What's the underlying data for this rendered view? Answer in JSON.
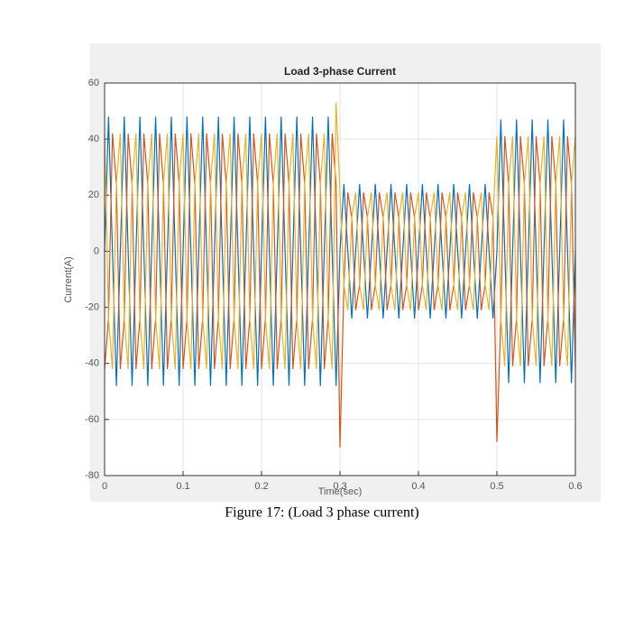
{
  "chart_data": {
    "type": "line",
    "title": "Load 3-phase Current",
    "xlabel": "Time(sec)",
    "ylabel": "Current(A)",
    "xlim": [
      0,
      0.6
    ],
    "xticks": [
      0,
      0.1,
      0.2,
      0.3,
      0.4,
      0.5,
      0.6
    ],
    "ylim": [
      -80,
      60
    ],
    "yticks": [
      -80,
      -60,
      -40,
      -20,
      0,
      20,
      40,
      60
    ],
    "grid": true,
    "x": [
      0,
      0.005,
      0.01,
      0.015,
      0.02,
      0.025,
      0.03,
      0.035,
      0.04,
      0.045,
      0.05,
      0.055,
      0.06,
      0.065,
      0.07,
      0.075,
      0.08,
      0.085,
      0.09,
      0.095,
      0.1,
      0.105,
      0.11,
      0.115,
      0.12,
      0.125,
      0.13,
      0.135,
      0.14,
      0.145,
      0.15,
      0.155,
      0.16,
      0.165,
      0.17,
      0.175,
      0.18,
      0.185,
      0.19,
      0.195,
      0.2,
      0.205,
      0.21,
      0.215,
      0.22,
      0.225,
      0.23,
      0.235,
      0.24,
      0.245,
      0.25,
      0.255,
      0.26,
      0.265,
      0.27,
      0.275,
      0.28,
      0.285,
      0.29,
      0.295,
      0.3,
      0.305,
      0.31,
      0.315,
      0.32,
      0.325,
      0.33,
      0.335,
      0.34,
      0.345,
      0.35,
      0.355,
      0.36,
      0.365,
      0.37,
      0.375,
      0.38,
      0.385,
      0.39,
      0.395,
      0.4,
      0.405,
      0.41,
      0.415,
      0.42,
      0.425,
      0.43,
      0.435,
      0.44,
      0.445,
      0.45,
      0.455,
      0.46,
      0.465,
      0.47,
      0.475,
      0.48,
      0.485,
      0.49,
      0.495,
      0.5,
      0.505,
      0.51,
      0.515,
      0.52,
      0.525,
      0.53,
      0.535,
      0.54,
      0.545,
      0.55,
      0.555,
      0.56,
      0.565,
      0.57,
      0.575,
      0.58,
      0.585,
      0.59,
      0.595,
      0.6
    ],
    "series": [
      {
        "color": "#0072BD",
        "values": [
          0,
          48,
          0,
          -48,
          0,
          48,
          0,
          -48,
          0,
          48,
          0,
          -48,
          0,
          48,
          0,
          -48,
          0,
          48,
          0,
          -48,
          0,
          48,
          0,
          -48,
          0,
          48,
          0,
          -48,
          0,
          48,
          0,
          -48,
          0,
          48,
          0,
          -48,
          0,
          48,
          0,
          -48,
          0,
          48,
          0,
          -48,
          0,
          48,
          0,
          -48,
          0,
          48,
          0,
          -48,
          0,
          48,
          0,
          -48,
          0,
          48,
          0,
          -48,
          0,
          24,
          0,
          -24,
          0,
          24,
          0,
          -24,
          0,
          24,
          0,
          -24,
          0,
          24,
          0,
          -24,
          0,
          24,
          0,
          -24,
          0,
          24,
          0,
          -24,
          0,
          24,
          0,
          -24,
          0,
          24,
          0,
          -24,
          0,
          24,
          0,
          -24,
          0,
          24,
          0,
          -24,
          0,
          47,
          0,
          -47,
          0,
          47,
          0,
          -47,
          0,
          47,
          0,
          -47,
          0,
          47,
          0,
          -47,
          0,
          47,
          0,
          -47,
          0
        ]
      },
      {
        "color": "#D95319",
        "values": [
          -42,
          -24,
          42,
          24,
          -42,
          -24,
          42,
          24,
          -42,
          -24,
          42,
          24,
          -42,
          -24,
          42,
          24,
          -42,
          -24,
          42,
          24,
          -42,
          -24,
          42,
          24,
          -42,
          -24,
          42,
          24,
          -42,
          -24,
          42,
          24,
          -42,
          -24,
          42,
          24,
          -42,
          -24,
          42,
          24,
          -42,
          -24,
          42,
          24,
          -42,
          -24,
          42,
          24,
          -42,
          -24,
          42,
          24,
          -42,
          -24,
          42,
          24,
          -42,
          -24,
          42,
          24,
          -70,
          -12,
          21,
          12,
          -21,
          -12,
          21,
          12,
          -21,
          -12,
          21,
          12,
          -21,
          -12,
          21,
          12,
          -21,
          -12,
          21,
          12,
          -21,
          -12,
          21,
          12,
          -21,
          -12,
          21,
          12,
          -21,
          -12,
          21,
          12,
          -21,
          -12,
          21,
          12,
          -21,
          -12,
          21,
          12,
          -68,
          -24,
          41,
          24,
          -41,
          -24,
          41,
          24,
          -41,
          -24,
          41,
          24,
          -41,
          -24,
          41,
          24,
          -41,
          -24,
          41,
          24,
          -41
        ]
      },
      {
        "color": "#EDB120",
        "values": [
          42,
          -24,
          -42,
          24,
          42,
          -24,
          -42,
          24,
          42,
          -24,
          -42,
          24,
          42,
          -24,
          -42,
          24,
          42,
          -24,
          -42,
          24,
          42,
          -24,
          -42,
          24,
          42,
          -24,
          -42,
          24,
          42,
          -24,
          -42,
          24,
          42,
          -24,
          -42,
          24,
          42,
          -24,
          -42,
          24,
          42,
          -24,
          -42,
          24,
          42,
          -24,
          -42,
          24,
          42,
          -24,
          -42,
          24,
          42,
          -24,
          -42,
          24,
          42,
          -24,
          -42,
          53,
          21,
          -12,
          -21,
          12,
          21,
          -12,
          -21,
          12,
          21,
          -12,
          -21,
          12,
          21,
          -12,
          -21,
          12,
          21,
          -12,
          -21,
          12,
          21,
          -12,
          -21,
          12,
          21,
          -12,
          -21,
          12,
          21,
          -12,
          -21,
          12,
          21,
          -12,
          -21,
          12,
          21,
          -12,
          -21,
          12,
          41,
          -24,
          -41,
          24,
          41,
          -24,
          -41,
          24,
          41,
          -24,
          -41,
          24,
          41,
          -24,
          -41,
          24,
          41,
          -24,
          -41,
          24,
          41
        ]
      }
    ]
  },
  "caption": "Figure 17: (Load 3 phase current)"
}
